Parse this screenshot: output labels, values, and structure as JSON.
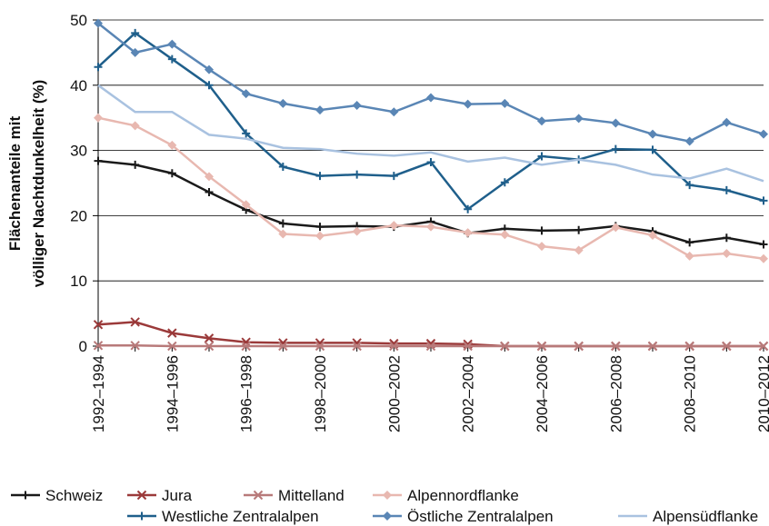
{
  "chart_data": {
    "type": "line",
    "ylabel": [
      "Flächenanteile mit",
      "völliger Nachtdunkelheit (%)"
    ],
    "categories": [
      "1992–1994",
      null,
      "1994–1996",
      null,
      "1996–1998",
      null,
      "1998–2000",
      null,
      "2000–2002",
      null,
      "2002–2004",
      null,
      "2004–2006",
      null,
      "2006–2008",
      null,
      "2008–2010",
      null,
      "2010–2012"
    ],
    "ylim": [
      0,
      50
    ],
    "yticks": [
      0,
      10,
      20,
      30,
      40,
      50
    ],
    "grid": true,
    "series": [
      {
        "name": "Schweiz",
        "color": "#1a1a1a",
        "marker": "plus",
        "values": [
          28.4,
          27.8,
          26.5,
          23.6,
          20.9,
          18.8,
          18.3,
          18.4,
          18.3,
          19.1,
          17.3,
          18.0,
          17.7,
          17.8,
          18.4,
          17.6,
          15.9,
          16.6,
          15.6
        ]
      },
      {
        "name": "Jura",
        "color": "#9b3a3a",
        "marker": "x",
        "values": [
          3.3,
          3.7,
          2.0,
          1.2,
          0.6,
          0.5,
          0.5,
          0.5,
          0.4,
          0.4,
          0.3,
          0,
          0,
          0,
          0,
          0,
          0,
          0,
          0
        ]
      },
      {
        "name": "Mittelland",
        "color": "#b87a7a",
        "marker": "x",
        "values": [
          0.1,
          0.1,
          0,
          0,
          0,
          0,
          0,
          0,
          0,
          0,
          0,
          0,
          0,
          0,
          0,
          0,
          0,
          0,
          0
        ]
      },
      {
        "name": "Alpennordflanke",
        "color": "#e8b8b0",
        "marker": "diamond",
        "values": [
          35.0,
          33.8,
          30.8,
          26.0,
          21.7,
          17.2,
          16.9,
          17.6,
          18.5,
          18.3,
          17.4,
          17.1,
          15.3,
          14.7,
          18.2,
          17.0,
          13.8,
          14.2,
          13.4
        ]
      },
      {
        "name": "Westliche Zentralalpen",
        "color": "#1f5f8b",
        "marker": "plus",
        "values": [
          42.8,
          48.0,
          44.0,
          40.0,
          32.6,
          27.5,
          26.1,
          26.3,
          26.1,
          28.2,
          21.0,
          25.1,
          29.1,
          28.6,
          30.2,
          30.1,
          24.7,
          23.9,
          22.3
        ]
      },
      {
        "name": "Östliche Zentralalpen",
        "color": "#5a86b5",
        "marker": "diamond",
        "values": [
          49.5,
          45.0,
          46.3,
          42.4,
          38.7,
          37.2,
          36.2,
          36.9,
          35.9,
          38.1,
          37.1,
          37.2,
          34.5,
          34.9,
          34.2,
          32.5,
          31.4,
          34.3,
          32.5
        ]
      },
      {
        "name": "Alpensüdflanke",
        "color": "#a9c2e0",
        "marker": null,
        "values": [
          40.0,
          35.9,
          35.9,
          32.4,
          31.8,
          30.4,
          30.2,
          29.5,
          29.2,
          29.7,
          28.3,
          28.9,
          27.8,
          28.6,
          27.8,
          26.3,
          25.7,
          27.2,
          25.3
        ]
      }
    ]
  }
}
